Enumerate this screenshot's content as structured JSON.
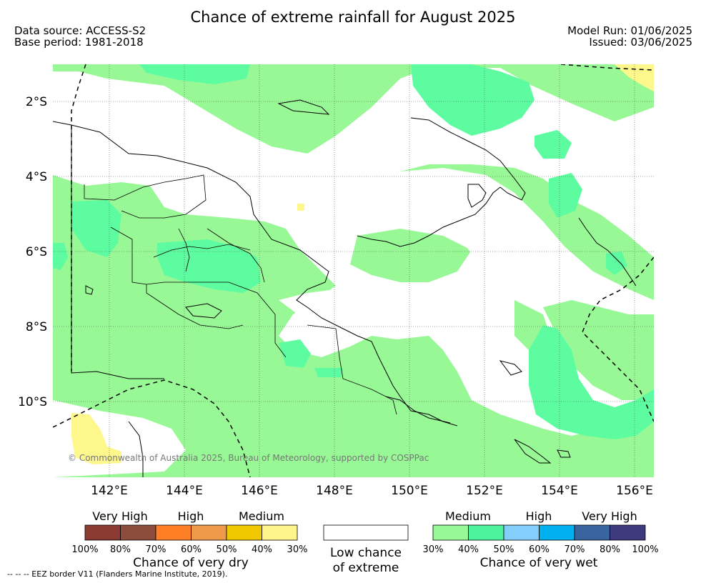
{
  "title": "Chance of extreme rainfall for August 2025",
  "source": {
    "data_source": "Data source: ACCESS-S2",
    "base_period": "Base period: 1981-2018"
  },
  "run": {
    "model_run": "Model Run: 01/06/2025",
    "issued": "Issued: 03/06/2025"
  },
  "map": {
    "lat_labels": [
      "2°S",
      "4°S",
      "6°S",
      "8°S",
      "10°S"
    ],
    "lon_labels": [
      "142°E",
      "144°E",
      "146°E",
      "148°E",
      "150°E",
      "152°E",
      "154°E",
      "156°E"
    ],
    "copyright": "© Commonwealth of Australia 2025, Bureau of Meteorology, supported by COSPPac",
    "colors": {
      "wet_medium": "#99f896",
      "wet_high": "#5efca0",
      "dry_medium": "#fdf78c",
      "coastline": "#000000"
    }
  },
  "legend": {
    "dry": {
      "headers": [
        "Very High",
        "High",
        "Medium"
      ],
      "ticks": [
        "100%",
        "80%",
        "70%",
        "60%",
        "50%",
        "40%",
        "30%"
      ],
      "colors": [
        "#8b3a32",
        "#8b4c3b",
        "#ff7f27",
        "#ef9a4a",
        "#f0c800",
        "#fef68c"
      ],
      "caption": "Chance of very dry"
    },
    "neutral": {
      "caption_line1": "Low chance",
      "caption_line2": "of extreme"
    },
    "wet": {
      "headers": [
        "Medium",
        "High",
        "Very High"
      ],
      "ticks": [
        "30%",
        "40%",
        "50%",
        "60%",
        "70%",
        "80%",
        "100%"
      ],
      "colors": [
        "#99f896",
        "#4bf39e",
        "#85cdfa",
        "#00b0ef",
        "#3a64a0",
        "#3d3a7e"
      ],
      "caption": "Chance of very wet"
    }
  },
  "footnote": "--  --  -- EEZ border V11 (Flanders Marine Institute, 2019)."
}
